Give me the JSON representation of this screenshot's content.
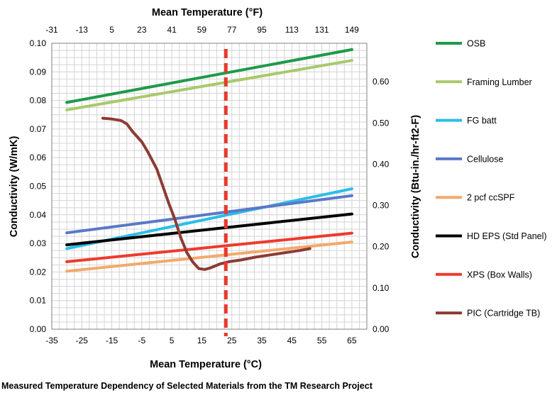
{
  "caption": "Measured Temperature Dependency of Selected Materials from the TM Research Project",
  "chart_data": {
    "type": "line",
    "title": "",
    "xlabel": "Mean Temperature (°C)",
    "x2label": "Mean Temperature (°F)",
    "ylabel": "Conductivity (W/mK)",
    "y2label": "Conductivity (Btu-in./hr-ft2-F)",
    "xlim": [
      -35,
      70
    ],
    "ylim": [
      0,
      0.1
    ],
    "x_ticks": [
      "-35",
      "-25",
      "-15",
      "-5",
      "5",
      "15",
      "25",
      "35",
      "45",
      "55",
      "65"
    ],
    "x2_ticks": [
      "-31",
      "-13",
      "5",
      "23",
      "41",
      "59",
      "77",
      "95",
      "113",
      "131",
      "149"
    ],
    "y_ticks": [
      "0.00",
      "0.01",
      "0.02",
      "0.03",
      "0.04",
      "0.05",
      "0.06",
      "0.07",
      "0.08",
      "0.09",
      "0.10"
    ],
    "y2_ticks": [
      "0.00",
      "0.10",
      "0.20",
      "0.30",
      "0.40",
      "0.50",
      "0.60"
    ],
    "grid": true,
    "legend_position": "right",
    "reference_line": {
      "x": 23,
      "color": "#e8392b",
      "style": "dashed"
    },
    "series": [
      {
        "name": "OSB",
        "color": "#1e9a4a",
        "points": [
          [
            -30,
            0.0793
          ],
          [
            65,
            0.0978
          ]
        ]
      },
      {
        "name": "Framing Lumber",
        "color": "#a8c96a",
        "points": [
          [
            -30,
            0.0767
          ],
          [
            65,
            0.094
          ]
        ]
      },
      {
        "name": "FG batt",
        "color": "#2bbde8",
        "points": [
          [
            -30,
            0.0282
          ],
          [
            65,
            0.0491
          ]
        ]
      },
      {
        "name": "Cellulose",
        "color": "#5a78c8",
        "points": [
          [
            -30,
            0.0337
          ],
          [
            65,
            0.0467
          ]
        ]
      },
      {
        "name": "2 pcf ccSPF",
        "color": "#f3a96b",
        "points": [
          [
            -30,
            0.0203
          ],
          [
            65,
            0.0305
          ]
        ]
      },
      {
        "name": "HD EPS (Std Panel)",
        "color": "#000000",
        "points": [
          [
            -30,
            0.0295
          ],
          [
            65,
            0.0403
          ]
        ]
      },
      {
        "name": "XPS (Box Walls)",
        "color": "#ee3a2c",
        "points": [
          [
            -30,
            0.0236
          ],
          [
            65,
            0.0336
          ]
        ]
      },
      {
        "name": "PIC (Cartridge TB)",
        "color": "#8c3b34",
        "points": [
          [
            -18,
            0.0738
          ],
          [
            -15,
            0.0735
          ],
          [
            -12,
            0.073
          ],
          [
            -10,
            0.0718
          ],
          [
            -8,
            0.069
          ],
          [
            -5,
            0.0655
          ],
          [
            -3,
            0.062
          ],
          [
            0,
            0.056
          ],
          [
            2,
            0.05
          ],
          [
            4,
            0.044
          ],
          [
            6,
            0.0385
          ],
          [
            8,
            0.032
          ],
          [
            10,
            0.0268
          ],
          [
            12,
            0.0235
          ],
          [
            14,
            0.0212
          ],
          [
            16,
            0.0209
          ],
          [
            18,
            0.0215
          ],
          [
            21,
            0.0228
          ],
          [
            24,
            0.0236
          ],
          [
            28,
            0.0242
          ],
          [
            33,
            0.0252
          ],
          [
            38,
            0.026
          ],
          [
            43,
            0.0268
          ],
          [
            48,
            0.0276
          ],
          [
            51,
            0.0282
          ]
        ]
      }
    ]
  }
}
